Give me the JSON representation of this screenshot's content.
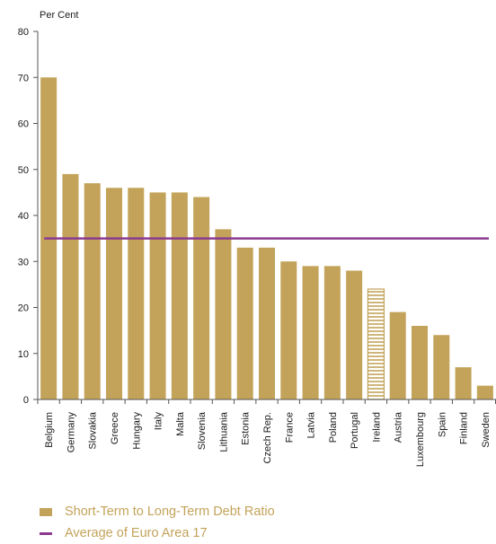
{
  "chart_data": {
    "type": "bar",
    "ylabel": "Per Cent",
    "ylim": [
      0,
      80
    ],
    "yticks": [
      0,
      10,
      20,
      30,
      40,
      50,
      60,
      70,
      80
    ],
    "categories": [
      "Belgium",
      "Germany",
      "Slovakia",
      "Greece",
      "Hungary",
      "Italy",
      "Malta",
      "Slovenia",
      "Lithuania",
      "Estonia",
      "Czech Rep.",
      "France",
      "Latvia",
      "Poland",
      "Portugal",
      "Ireland",
      "Austria",
      "Luxembourg",
      "Spain",
      "Finland",
      "Sweden"
    ],
    "series": [
      {
        "name": "Short-Term to Long-Term Debt Ratio",
        "type": "bar",
        "values": [
          70,
          49,
          47,
          46,
          46,
          45,
          45,
          44,
          37,
          33,
          33,
          30,
          29,
          29,
          28,
          24,
          19,
          16,
          14,
          7,
          3
        ]
      },
      {
        "name": "Average of Euro Area 17",
        "type": "line",
        "value": 35
      }
    ],
    "highlighted_category": "Ireland",
    "grid": false,
    "legend_position": "bottom-left",
    "colors": {
      "bar": "#c3a35a",
      "line": "#8b3a8f",
      "axis": "#555555",
      "legend_text": "#c3a35a"
    }
  }
}
